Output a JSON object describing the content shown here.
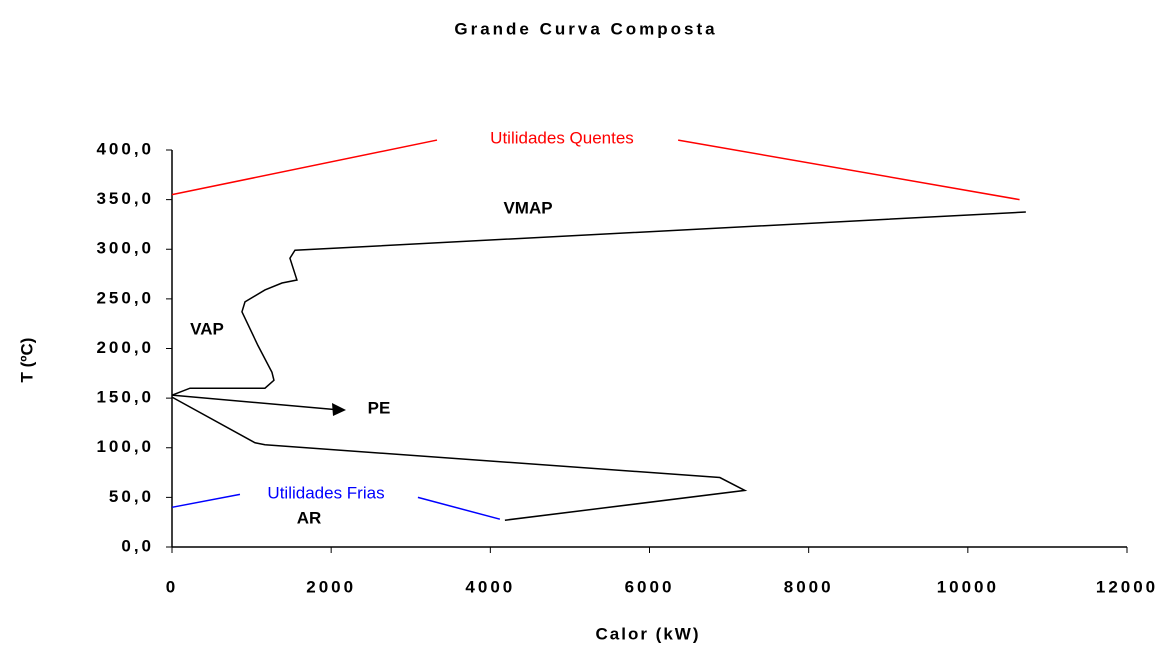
{
  "chart_data": {
    "type": "line",
    "title": "Grande Curva Composta",
    "x_label": "Calor (kW)",
    "y_label": "T (ºC)",
    "xlim": [
      0,
      12000
    ],
    "ylim": [
      0,
      400
    ],
    "xticks": [
      0,
      2000,
      4000,
      6000,
      8000,
      10000,
      12000
    ],
    "yticks": [
      {
        "value": 0,
        "label": "0,0"
      },
      {
        "value": 50,
        "label": "50,0"
      },
      {
        "value": 100,
        "label": "100,0"
      },
      {
        "value": 150,
        "label": "150,0"
      },
      {
        "value": 200,
        "label": "200,0"
      },
      {
        "value": 250,
        "label": "250,0"
      },
      {
        "value": 300,
        "label": "300,0"
      },
      {
        "value": 350,
        "label": "350,0"
      },
      {
        "value": 400,
        "label": "400,0"
      }
    ],
    "grid": false,
    "series": [
      {
        "color": "#000000",
        "x": [
          10729,
          1545,
          1482,
          1570,
          1382,
          1168,
          917,
          879,
          1080,
          1256,
          1281,
          1168,
          226,
          0,
          null,
          0,
          1043,
          1168,
          6884,
          7198,
          4183
        ],
        "values": [
          337.5,
          299,
          291,
          269,
          266,
          259,
          247,
          237,
          203,
          176,
          168,
          160,
          160,
          153,
          null,
          151,
          105,
          103,
          70,
          57,
          27
        ]
      },
      {
        "color": "#000000",
        "x": [
          0,
          2111
        ],
        "values": [
          153,
          138
        ]
      },
      {
        "color": "#ff0000",
        "x": [
          0,
          3330,
          null,
          6360,
          10650
        ],
        "values": [
          355,
          410,
          null,
          410,
          350
        ]
      },
      {
        "color": "#0000ff",
        "x": [
          0,
          854,
          null,
          3090,
          4120
        ],
        "values": [
          40,
          53,
          null,
          50,
          28
        ]
      }
    ],
    "annotations": [
      {
        "text": "Utilidades Quentes",
        "color": "#ff0000"
      },
      {
        "text": "VMAP",
        "color": "#000000"
      },
      {
        "text": "VAP",
        "color": "#000000"
      },
      {
        "text": "PE",
        "color": "#000000"
      },
      {
        "text": "Utilidades Frias",
        "color": "#0000ff"
      },
      {
        "text": "AR",
        "color": "#000000"
      }
    ]
  }
}
